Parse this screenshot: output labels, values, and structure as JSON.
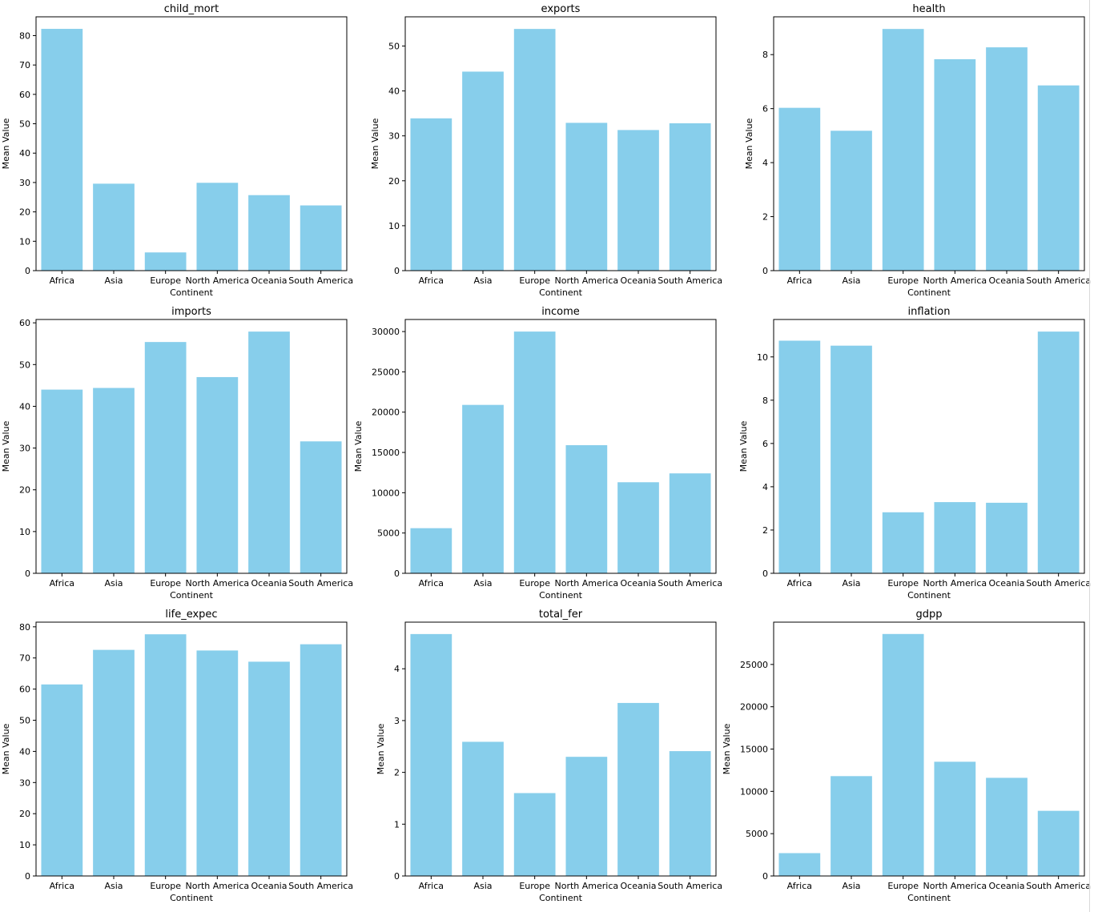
{
  "figure": {
    "bar_color": "#87ceeb",
    "xlabel": "Continent",
    "ylabel": "Mean Value"
  },
  "chart_data": [
    {
      "type": "bar",
      "title": "child_mort",
      "xlabel": "Continent",
      "ylabel": "Mean Value",
      "categories": [
        "Africa",
        "Asia",
        "Europe",
        "North America",
        "Oceania",
        "South America"
      ],
      "values": [
        82.3,
        29.6,
        6.2,
        29.9,
        25.7,
        22.2
      ],
      "ylim": [
        0,
        86.4
      ],
      "yticks": [
        0,
        10,
        20,
        30,
        40,
        50,
        60,
        70,
        80
      ]
    },
    {
      "type": "bar",
      "title": "exports",
      "xlabel": "Continent",
      "ylabel": "Mean Value",
      "categories": [
        "Africa",
        "Asia",
        "Europe",
        "North America",
        "Oceania",
        "South America"
      ],
      "values": [
        33.9,
        44.3,
        53.8,
        32.9,
        31.3,
        32.8
      ],
      "ylim": [
        0,
        56.5
      ],
      "yticks": [
        0,
        10,
        20,
        30,
        40,
        50
      ]
    },
    {
      "type": "bar",
      "title": "health",
      "xlabel": "Continent",
      "ylabel": "Mean Value",
      "categories": [
        "Africa",
        "Asia",
        "Europe",
        "North America",
        "Oceania",
        "South America"
      ],
      "values": [
        6.03,
        5.18,
        8.95,
        7.83,
        8.27,
        6.86
      ],
      "ylim": [
        0,
        9.4
      ],
      "yticks": [
        0,
        2,
        4,
        6,
        8
      ]
    },
    {
      "type": "bar",
      "title": "imports",
      "xlabel": "Continent",
      "ylabel": "Mean Value",
      "categories": [
        "Africa",
        "Asia",
        "Europe",
        "North America",
        "Oceania",
        "South America"
      ],
      "values": [
        44.0,
        44.4,
        55.4,
        47.0,
        57.9,
        31.6
      ],
      "ylim": [
        0,
        60.8
      ],
      "yticks": [
        0,
        10,
        20,
        30,
        40,
        50,
        60
      ]
    },
    {
      "type": "bar",
      "title": "income",
      "xlabel": "Continent",
      "ylabel": "Mean Value",
      "categories": [
        "Africa",
        "Asia",
        "Europe",
        "North America",
        "Oceania",
        "South America"
      ],
      "values": [
        5600,
        20900,
        30000,
        15900,
        11300,
        12400
      ],
      "ylim": [
        0,
        31500
      ],
      "yticks": [
        0,
        5000,
        10000,
        15000,
        20000,
        25000,
        30000
      ]
    },
    {
      "type": "bar",
      "title": "inflation",
      "xlabel": "Continent",
      "ylabel": "Mean Value",
      "categories": [
        "Africa",
        "Asia",
        "Europe",
        "North America",
        "Oceania",
        "South America"
      ],
      "values": [
        10.75,
        10.52,
        2.82,
        3.29,
        3.26,
        11.17
      ],
      "ylim": [
        0,
        11.73
      ],
      "yticks": [
        0,
        2,
        4,
        6,
        8,
        10
      ]
    },
    {
      "type": "bar",
      "title": "life_expec",
      "xlabel": "Continent",
      "ylabel": "Mean Value",
      "categories": [
        "Africa",
        "Asia",
        "Europe",
        "North America",
        "Oceania",
        "South America"
      ],
      "values": [
        61.5,
        72.6,
        77.6,
        72.4,
        68.8,
        74.4
      ],
      "ylim": [
        0,
        81.5
      ],
      "yticks": [
        0,
        10,
        20,
        30,
        40,
        50,
        60,
        70,
        80
      ]
    },
    {
      "type": "bar",
      "title": "total_fer",
      "xlabel": "Continent",
      "ylabel": "Mean Value",
      "categories": [
        "Africa",
        "Asia",
        "Europe",
        "North America",
        "Oceania",
        "South America"
      ],
      "values": [
        4.67,
        2.59,
        1.6,
        2.3,
        3.34,
        2.41
      ],
      "ylim": [
        0,
        4.9
      ],
      "yticks": [
        0,
        1,
        2,
        3,
        4
      ]
    },
    {
      "type": "bar",
      "title": "gdpp",
      "xlabel": "Continent",
      "ylabel": "Mean Value",
      "categories": [
        "Africa",
        "Asia",
        "Europe",
        "North America",
        "Oceania",
        "South America"
      ],
      "values": [
        2700,
        11800,
        28600,
        13500,
        11600,
        7700
      ],
      "ylim": [
        0,
        30000
      ],
      "yticks": [
        0,
        5000,
        10000,
        15000,
        20000,
        25000
      ]
    }
  ]
}
